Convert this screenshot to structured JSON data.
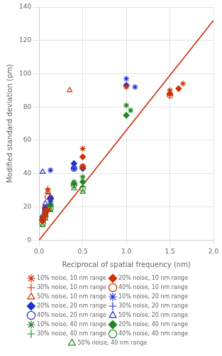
{
  "chart_data": {
    "type": "scatter",
    "xlabel": "Reciprocal of spatial frequency (nm)",
    "ylabel": "Modified standard deviation (pm)",
    "xlim": [
      0,
      2
    ],
    "ylim": [
      0,
      140
    ],
    "xticks": [
      {
        "value": 0,
        "label": "0.0"
      },
      0.5,
      {
        "value": 1,
        "label": "1.0"
      },
      1.5,
      {
        "value": 2,
        "label": "2.0"
      }
    ],
    "yticks": [
      0,
      20,
      40,
      60,
      80,
      100,
      120,
      140
    ],
    "grid": true,
    "legend": "bottom",
    "series": [
      {
        "type": "line",
        "color": "#cc2200",
        "x": [
          0,
          2
        ],
        "values": [
          0,
          132
        ]
      },
      {
        "name": "10% noise, 10 nm range",
        "type": "scatter",
        "marker": "star_open",
        "color": "#cc3300",
        "x": [
          0.04,
          0.07,
          0.1,
          0.5,
          1.0,
          1.5,
          1.65
        ],
        "values": [
          13,
          17,
          30,
          55,
          92,
          90,
          94
        ]
      },
      {
        "name": "20% noise, 10 nm range",
        "type": "scatter",
        "marker": "asterisk",
        "color": "#cc3300",
        "x": [
          0.04,
          0.07,
          0.1,
          0.5,
          1.5,
          1.6
        ],
        "values": [
          12,
          15,
          18,
          50,
          88,
          91
        ]
      },
      {
        "name": "30% noise, 10 nm range",
        "type": "scatter",
        "marker": "plus",
        "color": "#cc3300",
        "x": [
          0.04,
          0.07,
          0.1,
          0.5,
          1.5
        ],
        "values": [
          11,
          14,
          31,
          44,
          87
        ]
      },
      {
        "name": "40% noise, 10 nm range",
        "type": "scatter",
        "marker": "circle_open",
        "color": "#cc3300",
        "x": [
          0.04,
          0.07,
          0.1,
          0.5,
          1.5
        ],
        "values": [
          12,
          19,
          26,
          44,
          87
        ]
      },
      {
        "name": "50% noise, 10 nm range",
        "type": "scatter",
        "marker": "tri_open",
        "color": "#cc3300",
        "x": [
          0.04,
          0.07,
          0.1,
          0.35,
          0.5
        ],
        "values": [
          14,
          18,
          29,
          90,
          44
        ]
      },
      {
        "name": "10% noise, 20 nm range",
        "type": "scatter",
        "marker": "star_open",
        "color": "#2233cc",
        "x": [
          0.04,
          0.07,
          0.13,
          0.4,
          0.5,
          1.0,
          1.1
        ],
        "values": [
          14,
          20,
          42,
          43,
          44,
          97,
          92
        ]
      },
      {
        "name": "20% noise, 20 nm range",
        "type": "scatter",
        "marker": "asterisk",
        "color": "#2233cc",
        "x": [
          0.04,
          0.07,
          0.13,
          0.4,
          0.5,
          1.0
        ],
        "values": [
          14,
          19,
          25,
          46,
          43,
          93
        ]
      },
      {
        "name": "30% noise, 20 nm range",
        "type": "scatter",
        "marker": "plus",
        "color": "#2233cc",
        "x": [
          0.04,
          0.07,
          0.13,
          0.4,
          0.5
        ],
        "values": [
          13,
          18,
          23,
          43,
          43
        ]
      },
      {
        "name": "40% noise, 20 nm range",
        "type": "scatter",
        "marker": "circle_open",
        "color": "#2233cc",
        "x": [
          0.04,
          0.07,
          0.13,
          0.4
        ],
        "values": [
          12,
          17,
          25,
          43
        ]
      },
      {
        "name": "50% noise, 20 nm range",
        "type": "scatter",
        "marker": "tri_open",
        "color": "#2233cc",
        "x": [
          0.04,
          0.07,
          0.13,
          0.4
        ],
        "values": [
          41,
          22,
          26,
          44
        ]
      },
      {
        "name": "10% noise, 40 nm range",
        "type": "scatter",
        "marker": "star_open",
        "color": "#228822",
        "x": [
          0.04,
          0.07,
          0.13,
          0.4,
          0.5,
          1.0,
          1.05
        ],
        "values": [
          13,
          17,
          22,
          35,
          38,
          81,
          78
        ]
      },
      {
        "name": "20% noise, 40 nm range",
        "type": "scatter",
        "marker": "asterisk",
        "color": "#228822",
        "x": [
          0.04,
          0.07,
          0.13,
          0.4,
          0.5,
          1.0
        ],
        "values": [
          12,
          16,
          21,
          34,
          35,
          75
        ]
      },
      {
        "name": "30% noise, 40 nm range",
        "type": "scatter",
        "marker": "plus",
        "color": "#228822",
        "x": [
          0.04,
          0.07,
          0.13,
          0.4,
          0.5
        ],
        "values": [
          11,
          15,
          20,
          33,
          32
        ]
      },
      {
        "name": "40% noise, 40 nm range",
        "type": "scatter",
        "marker": "circle_open",
        "color": "#228822",
        "x": [
          0.04,
          0.07,
          0.13,
          0.4,
          0.5
        ],
        "values": [
          10,
          14,
          19,
          33,
          31
        ]
      },
      {
        "name": "50% noise, 40 nm range",
        "type": "scatter",
        "marker": "tri_open",
        "color": "#228822",
        "x": [
          0.04,
          0.07,
          0.13,
          0.4,
          0.5
        ],
        "values": [
          9,
          13,
          18,
          31,
          29
        ]
      }
    ]
  }
}
